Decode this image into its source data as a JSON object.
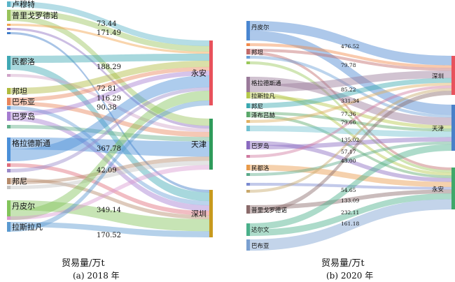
{
  "chart_data": [
    {
      "type": "sankey",
      "caption": "(a) 2018 年",
      "xlabel": "贸易量/万t",
      "targets": [
        "永安",
        "天津",
        "深圳"
      ],
      "target_colors": [
        "#e8525c",
        "#2f9b5b",
        "#c89a1e"
      ],
      "nodes": [
        {
          "name": "卢穆特",
          "color": "#5ab4c8"
        },
        {
          "name": "普里戈罗德诺",
          "color": "#98c35a"
        },
        {
          "name": "",
          "color": "#f2a14a"
        },
        {
          "name": "",
          "color": "#8f6fc2"
        },
        {
          "name": "",
          "color": "#3e7cc8"
        },
        {
          "name": "民都洛",
          "color": "#3fa8b4"
        },
        {
          "name": "",
          "color": "#d0a3c8"
        },
        {
          "name": "邦坦",
          "color": "#b0bb3d"
        },
        {
          "name": "巴布亚",
          "color": "#e8845a"
        },
        {
          "name": "",
          "color": "#6aa0d8"
        },
        {
          "name": "巴罗岛",
          "color": "#a57cd0"
        },
        {
          "name": "",
          "color": "#63b08a"
        },
        {
          "name": "格拉德斯通",
          "color": "#4a8fd8"
        },
        {
          "name": "",
          "color": "#e06c7a"
        },
        {
          "name": "",
          "color": "#9a8ac9"
        },
        {
          "name": "邦尼",
          "color": "#b58a6a"
        },
        {
          "name": "",
          "color": "#c3c3c3"
        },
        {
          "name": "丹皮尔",
          "color": "#82c45a"
        },
        {
          "name": "",
          "color": "#d99ad0"
        },
        {
          "name": "拉斯拉凡",
          "color": "#5a9ad0"
        }
      ],
      "value_labels": [
        "73.44",
        "171.49",
        "188.29",
        "72.81",
        "116.29",
        "90.38",
        "367.78",
        "42.09",
        "349.14",
        "170.52"
      ]
    },
    {
      "type": "sankey",
      "caption": "(b) 2020 年",
      "xlabel": "贸易量/万t",
      "targets": [
        "深圳",
        "天津",
        "永安"
      ],
      "target_colors": [
        "#e8525c",
        "#4a80c8",
        "#3fa86a"
      ],
      "nodes": [
        {
          "name": "丹皮尔",
          "color": "#4a86d0"
        },
        {
          "name": "",
          "color": "#f28a4a"
        },
        {
          "name": "邦坦",
          "color": "#c06a6a"
        },
        {
          "name": "",
          "color": "#6aa0d8"
        },
        {
          "name": "",
          "color": "#9ac85a"
        },
        {
          "name": "格拉德斯通",
          "color": "#9a7a9a"
        },
        {
          "name": "拉斯拉凡",
          "color": "#b5c84a"
        },
        {
          "name": "邦尼",
          "color": "#3aa8b0"
        },
        {
          "name": "泽布吕赫",
          "color": "#5aa86a"
        },
        {
          "name": "",
          "color": "#e0b060"
        },
        {
          "name": "",
          "color": "#70c0d0"
        },
        {
          "name": "巴罗岛",
          "color": "#8a6ac0"
        },
        {
          "name": "",
          "color": "#d07aa0"
        },
        {
          "name": "民都洛",
          "color": "#e89a4a"
        },
        {
          "name": "",
          "color": "#5aaa8a"
        },
        {
          "name": "",
          "color": "#7a8ad0"
        },
        {
          "name": "",
          "color": "#c8a86a"
        },
        {
          "name": "普里戈罗德诺",
          "color": "#8a6a6a"
        },
        {
          "name": "达尔文",
          "color": "#4ab08a"
        },
        {
          "name": "巴布亚",
          "color": "#7aa0d0"
        }
      ],
      "value_labels": [
        "476.52",
        "79.78",
        "85.22",
        "331.34",
        "77.36",
        "79.66",
        "135.02",
        "57.17",
        "43.00",
        "54.65",
        "133.09",
        "232.11",
        "161.18"
      ]
    }
  ]
}
